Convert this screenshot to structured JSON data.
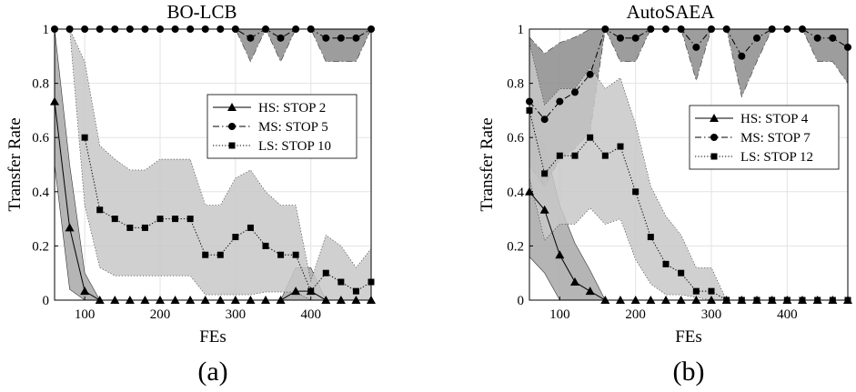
{
  "chart_data": [
    {
      "type": "line",
      "title": "BO-LCB",
      "caption": "(a)",
      "xlabel": "FEs",
      "ylabel": "Transfer Rate",
      "xlim": [
        60,
        480
      ],
      "ylim": [
        0,
        1
      ],
      "xticks": [
        100,
        200,
        300,
        400
      ],
      "xtick_labels": [
        "100",
        "200",
        "300",
        "400"
      ],
      "yticks": [
        0,
        0.2,
        0.4,
        0.6,
        0.8,
        1
      ],
      "ytick_labels": [
        "0",
        "0.2",
        "0.4",
        "0.6",
        "0.8",
        "1"
      ],
      "grid": true,
      "legend_position": "right-upper",
      "x": [
        60,
        80,
        100,
        120,
        140,
        160,
        180,
        200,
        220,
        240,
        260,
        280,
        300,
        320,
        340,
        360,
        380,
        400,
        420,
        440,
        460,
        480
      ],
      "series": [
        {
          "name": "HS: STOP 2",
          "marker": "triangle",
          "dash": "solid",
          "values": [
            0.733,
            0.267,
            0.033,
            0,
            0,
            0,
            0,
            0,
            0,
            0,
            0,
            0,
            0,
            0,
            0,
            0,
            0.033,
            0.033,
            0,
            0,
            0,
            0
          ],
          "lower": [
            0.5,
            0.04,
            0,
            0,
            0,
            0,
            0,
            0,
            0,
            0,
            0,
            0,
            0,
            0,
            0,
            0,
            0,
            0,
            0,
            0,
            0,
            0
          ],
          "upper": [
            1,
            0.5,
            0.1,
            0,
            0,
            0,
            0,
            0,
            0,
            0,
            0,
            0,
            0,
            0,
            0,
            0,
            0.12,
            0.12,
            0,
            0,
            0,
            0
          ],
          "band_shade": "#a8a8a8"
        },
        {
          "name": "MS: STOP 5",
          "marker": "circle",
          "dash": "dashdot",
          "values": [
            1,
            1,
            1,
            1,
            1,
            1,
            1,
            1,
            1,
            1,
            1,
            1,
            1,
            0.967,
            1,
            0.967,
            1,
            1,
            0.967,
            0.967,
            0.967,
            1
          ],
          "lower": [
            1,
            1,
            1,
            1,
            1,
            1,
            1,
            1,
            1,
            1,
            1,
            1,
            1,
            0.88,
            1,
            0.88,
            1,
            1,
            0.88,
            0.88,
            0.88,
            1
          ],
          "upper": [
            1,
            1,
            1,
            1,
            1,
            1,
            1,
            1,
            1,
            1,
            1,
            1,
            1,
            1,
            1,
            1,
            1,
            1,
            1,
            1,
            1,
            1
          ],
          "band_shade": "#8c8c8c"
        },
        {
          "name": "LS: STOP 10",
          "marker": "square",
          "dash": "dotted",
          "values": [
            null,
            null,
            0.6,
            0.333,
            0.3,
            0.267,
            0.267,
            0.3,
            0.3,
            0.3,
            0.167,
            0.167,
            0.233,
            0.267,
            0.2,
            0.167,
            0.167,
            0.033,
            0.1,
            0.067,
            0.033,
            0.067
          ],
          "lower": [
            null,
            1,
            0.35,
            0.12,
            0.09,
            0.09,
            0.09,
            0.09,
            0.09,
            0.09,
            0.02,
            0.02,
            0.02,
            0.02,
            0.03,
            0.03,
            0.03,
            0,
            0,
            0,
            0,
            0
          ],
          "upper": [
            null,
            1,
            0.88,
            0.57,
            0.52,
            0.48,
            0.48,
            0.52,
            0.52,
            0.52,
            0.35,
            0.35,
            0.45,
            0.48,
            0.4,
            0.35,
            0.35,
            0.07,
            0.24,
            0.2,
            0.12,
            0.19
          ],
          "band_shade": "#c8c8c8"
        }
      ]
    },
    {
      "type": "line",
      "title": "AutoSAEA",
      "caption": "(b)",
      "xlabel": "FEs",
      "ylabel": "Transfer Rate",
      "xlim": [
        60,
        480
      ],
      "ylim": [
        0,
        1
      ],
      "xticks": [
        100,
        200,
        300,
        400
      ],
      "xtick_labels": [
        "100",
        "200",
        "300",
        "400"
      ],
      "yticks": [
        0,
        0.2,
        0.4,
        0.6,
        0.8,
        1
      ],
      "ytick_labels": [
        "0",
        "0.2",
        "0.4",
        "0.6",
        "0.8",
        "1"
      ],
      "grid": true,
      "legend_position": "right-upper",
      "x": [
        60,
        80,
        100,
        120,
        140,
        160,
        180,
        200,
        220,
        240,
        260,
        280,
        300,
        320,
        340,
        360,
        380,
        400,
        420,
        440,
        460,
        480
      ],
      "series": [
        {
          "name": "HS: STOP 4",
          "marker": "triangle",
          "dash": "solid",
          "values": [
            0.4,
            0.333,
            0.167,
            0.067,
            0.033,
            0,
            0,
            0,
            0,
            0,
            0,
            0,
            0,
            0,
            0,
            0,
            0,
            0,
            0,
            0,
            0,
            0
          ],
          "lower": [
            0.16,
            0.1,
            0,
            0,
            0,
            0,
            0,
            0,
            0,
            0,
            0,
            0,
            0,
            0,
            0,
            0,
            0,
            0,
            0,
            0,
            0,
            0
          ],
          "upper": [
            0.64,
            0.57,
            0.35,
            0.21,
            0.11,
            0,
            0,
            0,
            0,
            0,
            0,
            0,
            0,
            0,
            0,
            0,
            0,
            0,
            0,
            0,
            0,
            0
          ],
          "band_shade": "#a8a8a8"
        },
        {
          "name": "MS: STOP 7",
          "marker": "circle",
          "dash": "dashdot",
          "values": [
            0.733,
            0.667,
            0.733,
            0.767,
            0.833,
            1,
            0.967,
            0.967,
            1,
            1,
            1,
            0.933,
            1,
            1,
            0.9,
            0.967,
            1,
            1,
            1,
            0.967,
            0.967,
            0.933
          ],
          "lower": [
            0.5,
            0.42,
            0.52,
            0.56,
            0.62,
            1,
            0.88,
            0.88,
            1,
            1,
            1,
            0.81,
            1,
            1,
            0.75,
            0.88,
            1,
            1,
            1,
            0.88,
            0.88,
            0.8
          ],
          "upper": [
            0.97,
            0.91,
            0.95,
            0.97,
            1,
            1,
            1,
            1,
            1,
            1,
            1,
            1,
            1,
            1,
            1,
            1,
            1,
            1,
            1,
            1,
            1,
            1
          ],
          "band_shade": "#8c8c8c"
        },
        {
          "name": "LS: STOP 12",
          "marker": "square",
          "dash": "dotted",
          "values": [
            0.7,
            0.467,
            0.533,
            0.533,
            0.6,
            0.533,
            0.567,
            0.4,
            0.233,
            0.133,
            0.1,
            0.033,
            0.033,
            0,
            0,
            0,
            0,
            0,
            0,
            0,
            0,
            0
          ],
          "lower": [
            0.45,
            0.22,
            0.28,
            0.28,
            0.34,
            0.28,
            0.3,
            0.15,
            0.06,
            0.02,
            0.02,
            0.01,
            0,
            0,
            0,
            0,
            0,
            0,
            0,
            0,
            0,
            0
          ],
          "upper": [
            0.95,
            0.72,
            0.78,
            0.78,
            0.86,
            0.78,
            0.82,
            0.65,
            0.42,
            0.31,
            0.24,
            0.12,
            0.12,
            0,
            0,
            0,
            0,
            0,
            0,
            0,
            0,
            0
          ],
          "band_shade": "#c8c8c8"
        }
      ]
    }
  ]
}
